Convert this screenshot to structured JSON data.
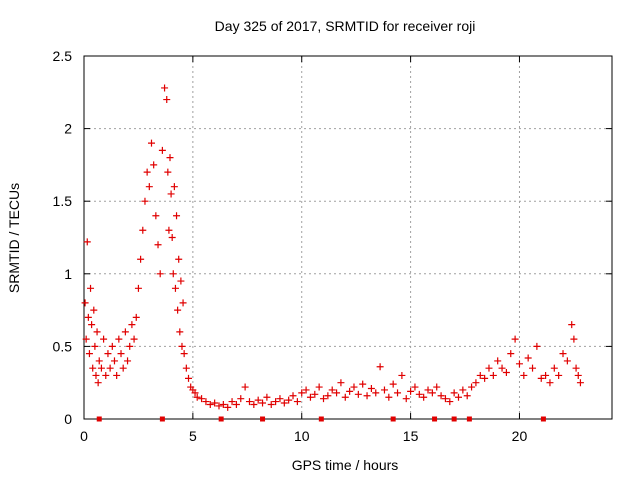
{
  "chart_data": {
    "type": "scatter",
    "title": "Day 325 of 2017, SRMTID for receiver roji",
    "xlabel": "GPS time / hours",
    "ylabel": "SRMTID / TECUs",
    "xlim": [
      0,
      24.25
    ],
    "ylim": [
      0,
      2.5
    ],
    "xticks": [
      0,
      5,
      10,
      15,
      20
    ],
    "xtick_labels": [
      "0",
      "5",
      "10",
      "15",
      "20"
    ],
    "yticks": [
      0,
      0.5,
      1,
      1.5,
      2,
      2.5
    ],
    "ytick_labels": [
      "0",
      "0.5",
      "1",
      "1.5",
      "2",
      "2.5"
    ],
    "grid": true,
    "marker": "+",
    "color": "#e00000",
    "series": [
      {
        "name": "SRMTID",
        "x": [
          0.05,
          0.1,
          0.15,
          0.2,
          0.25,
          0.3,
          0.35,
          0.4,
          0.45,
          0.5,
          0.55,
          0.6,
          0.65,
          0.7,
          0.8,
          0.9,
          1.0,
          1.1,
          1.2,
          1.3,
          1.4,
          1.5,
          1.6,
          1.7,
          1.8,
          1.9,
          2.0,
          2.1,
          2.2,
          2.3,
          2.4,
          2.5,
          2.6,
          2.7,
          2.8,
          2.9,
          3.0,
          3.1,
          3.2,
          3.3,
          3.4,
          3.5,
          3.6,
          3.7,
          3.8,
          3.85,
          3.9,
          3.95,
          4.0,
          4.05,
          4.1,
          4.15,
          4.2,
          4.25,
          4.3,
          4.35,
          4.4,
          4.45,
          4.5,
          4.55,
          4.6,
          4.7,
          4.8,
          4.9,
          5.0,
          5.1,
          5.2,
          5.4,
          5.6,
          5.8,
          6.0,
          6.2,
          6.4,
          6.6,
          6.8,
          7.0,
          7.2,
          7.4,
          7.6,
          7.8,
          8.0,
          8.2,
          8.4,
          8.6,
          8.8,
          9.0,
          9.2,
          9.4,
          9.6,
          9.8,
          10.0,
          10.2,
          10.4,
          10.6,
          10.8,
          11.0,
          11.2,
          11.4,
          11.6,
          11.8,
          12.0,
          12.2,
          12.4,
          12.6,
          12.8,
          13.0,
          13.2,
          13.4,
          13.6,
          13.8,
          14.0,
          14.2,
          14.4,
          14.6,
          14.8,
          15.0,
          15.2,
          15.4,
          15.6,
          15.8,
          16.0,
          16.2,
          16.4,
          16.6,
          16.8,
          17.0,
          17.2,
          17.4,
          17.6,
          17.8,
          18.0,
          18.2,
          18.4,
          18.6,
          18.8,
          19.0,
          19.2,
          19.4,
          19.6,
          19.8,
          20.0,
          20.2,
          20.4,
          20.6,
          20.8,
          21.0,
          21.2,
          21.4,
          21.6,
          21.8,
          22.0,
          22.2,
          22.4,
          22.5,
          22.6,
          22.7,
          22.8
        ],
        "y": [
          0.8,
          0.55,
          1.22,
          0.7,
          0.45,
          0.9,
          0.65,
          0.35,
          0.75,
          0.5,
          0.3,
          0.6,
          0.25,
          0.4,
          0.35,
          0.55,
          0.3,
          0.45,
          0.35,
          0.5,
          0.4,
          0.3,
          0.55,
          0.45,
          0.35,
          0.6,
          0.4,
          0.5,
          0.65,
          0.55,
          0.7,
          0.9,
          1.1,
          1.3,
          1.5,
          1.7,
          1.6,
          1.9,
          1.75,
          1.4,
          1.2,
          1.0,
          1.85,
          2.28,
          2.2,
          1.7,
          1.3,
          1.8,
          1.55,
          1.25,
          1.0,
          1.6,
          0.9,
          1.4,
          0.75,
          1.1,
          0.6,
          0.95,
          0.5,
          0.8,
          0.45,
          0.35,
          0.28,
          0.22,
          0.2,
          0.18,
          0.15,
          0.14,
          0.12,
          0.1,
          0.11,
          0.09,
          0.1,
          0.08,
          0.12,
          0.1,
          0.14,
          0.22,
          0.12,
          0.1,
          0.13,
          0.11,
          0.15,
          0.1,
          0.12,
          0.14,
          0.11,
          0.13,
          0.16,
          0.12,
          0.18,
          0.2,
          0.15,
          0.17,
          0.22,
          0.14,
          0.16,
          0.2,
          0.18,
          0.25,
          0.15,
          0.19,
          0.22,
          0.17,
          0.24,
          0.16,
          0.21,
          0.18,
          0.36,
          0.2,
          0.15,
          0.24,
          0.18,
          0.3,
          0.14,
          0.19,
          0.22,
          0.17,
          0.15,
          0.2,
          0.18,
          0.22,
          0.16,
          0.14,
          0.12,
          0.18,
          0.15,
          0.2,
          0.16,
          0.22,
          0.25,
          0.3,
          0.28,
          0.35,
          0.3,
          0.4,
          0.35,
          0.32,
          0.45,
          0.55,
          0.38,
          0.3,
          0.42,
          0.35,
          0.5,
          0.28,
          0.3,
          0.25,
          0.35,
          0.3,
          0.45,
          0.4,
          0.65,
          0.55,
          0.35,
          0.3,
          0.25
        ]
      }
    ],
    "bottom_markers_x": [
      0.7,
      3.6,
      6.3,
      8.2,
      10.9,
      14.2,
      16.1,
      17.0,
      17.7,
      21.1
    ]
  }
}
